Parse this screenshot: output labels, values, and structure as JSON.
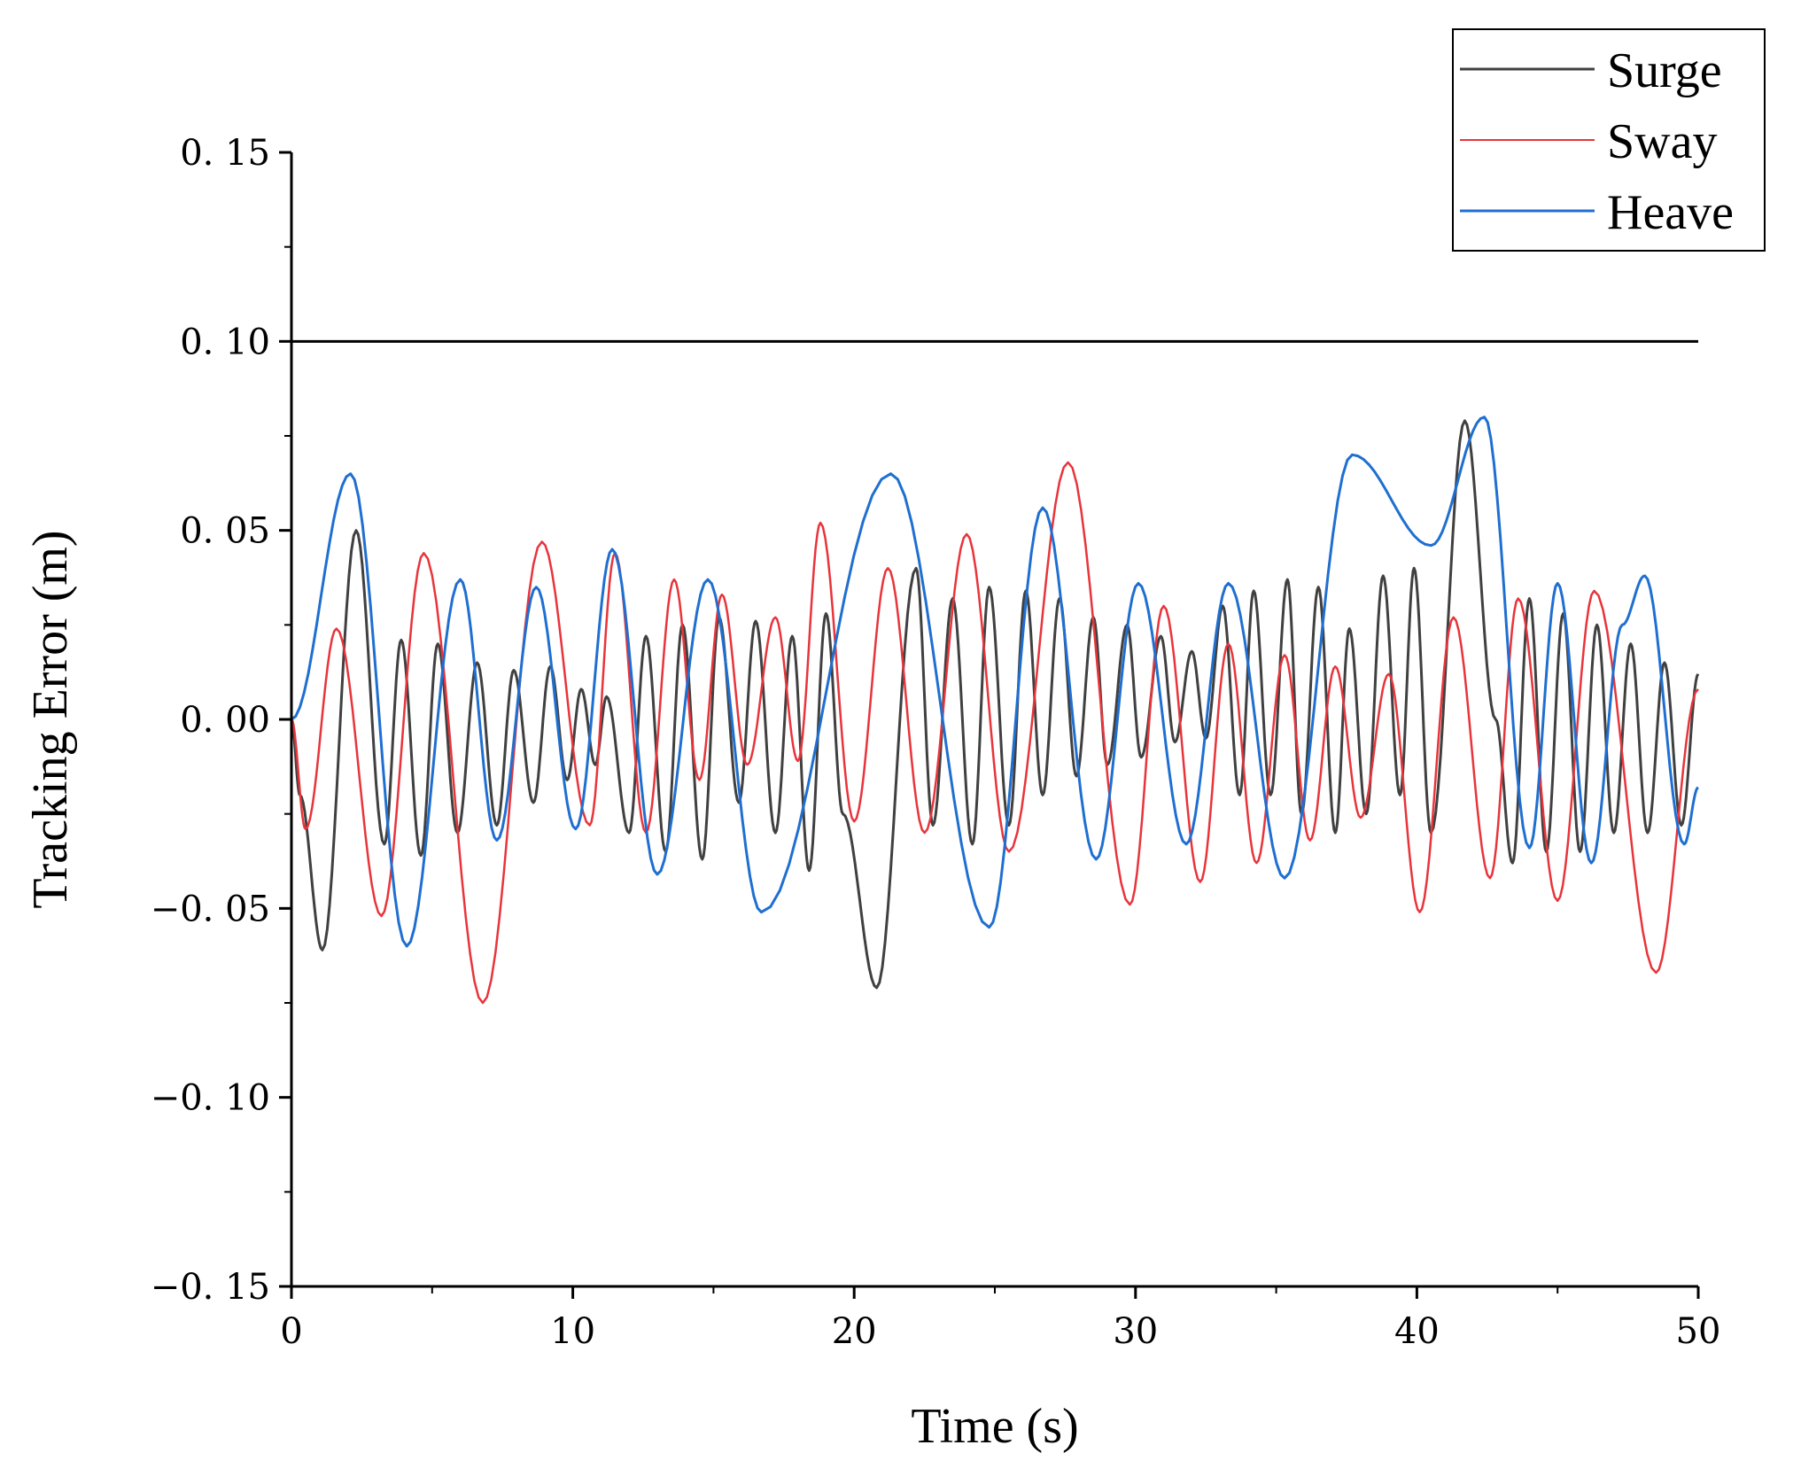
{
  "chart_data": {
    "type": "line",
    "title": "",
    "xlabel": "Time (s)",
    "ylabel": "Tracking Error (m)",
    "xlim": [
      0,
      50
    ],
    "ylim": [
      -0.15,
      0.15
    ],
    "x_ticks": [
      "0",
      "10",
      "20",
      "30",
      "40",
      "50"
    ],
    "y_ticks": [
      "0.15",
      "0.10",
      "0.05",
      "0.00",
      "-0.05",
      "-0.10",
      "-0.15"
    ],
    "y_tick_values": [
      0.15,
      0.1,
      0.05,
      0.0,
      -0.05,
      -0.1,
      -0.15
    ],
    "x_tick_values": [
      0,
      10,
      20,
      30,
      40,
      50
    ],
    "grid": false,
    "legend_position": "top-right",
    "threshold": {
      "y": 0.1,
      "color": "#000000"
    },
    "series": [
      {
        "name": "Surge",
        "color": "#404040",
        "extrema": [
          [
            0,
            0
          ],
          [
            0.3,
            -0.02
          ],
          [
            1.1,
            -0.061
          ],
          [
            2.3,
            0.05
          ],
          [
            3.3,
            -0.033
          ],
          [
            3.9,
            0.021
          ],
          [
            4.6,
            -0.036
          ],
          [
            5.2,
            0.02
          ],
          [
            5.9,
            -0.03
          ],
          [
            6.6,
            0.015
          ],
          [
            7.3,
            -0.028
          ],
          [
            7.9,
            0.013
          ],
          [
            8.6,
            -0.022
          ],
          [
            9.2,
            0.014
          ],
          [
            9.8,
            -0.016
          ],
          [
            10.3,
            0.008
          ],
          [
            10.8,
            -0.012
          ],
          [
            11.2,
            0.006
          ],
          [
            12.0,
            -0.03
          ],
          [
            12.6,
            0.022
          ],
          [
            13.3,
            -0.035
          ],
          [
            13.9,
            0.025
          ],
          [
            14.6,
            -0.037
          ],
          [
            15.2,
            0.027
          ],
          [
            15.9,
            -0.022
          ],
          [
            16.5,
            0.026
          ],
          [
            17.2,
            -0.03
          ],
          [
            17.8,
            0.022
          ],
          [
            18.4,
            -0.04
          ],
          [
            19.0,
            0.028
          ],
          [
            19.6,
            -0.025
          ],
          [
            20.8,
            -0.071
          ],
          [
            22.2,
            0.04
          ],
          [
            22.8,
            -0.028
          ],
          [
            23.5,
            0.032
          ],
          [
            24.2,
            -0.033
          ],
          [
            24.8,
            0.035
          ],
          [
            25.5,
            -0.028
          ],
          [
            26.1,
            0.034
          ],
          [
            26.7,
            -0.02
          ],
          [
            27.3,
            0.032
          ],
          [
            27.9,
            -0.015
          ],
          [
            28.5,
            0.027
          ],
          [
            29.0,
            -0.012
          ],
          [
            29.7,
            0.025
          ],
          [
            30.2,
            -0.01
          ],
          [
            30.9,
            0.022
          ],
          [
            31.4,
            -0.006
          ],
          [
            32.0,
            0.018
          ],
          [
            32.5,
            -0.005
          ],
          [
            33.1,
            0.03
          ],
          [
            33.7,
            -0.02
          ],
          [
            34.2,
            0.034
          ],
          [
            34.8,
            -0.02
          ],
          [
            35.4,
            0.037
          ],
          [
            35.9,
            -0.025
          ],
          [
            36.5,
            0.035
          ],
          [
            37.1,
            -0.03
          ],
          [
            37.6,
            0.024
          ],
          [
            38.2,
            -0.025
          ],
          [
            38.8,
            0.038
          ],
          [
            39.4,
            -0.02
          ],
          [
            39.9,
            0.04
          ],
          [
            40.5,
            -0.03
          ],
          [
            41.7,
            0.079
          ],
          [
            42.8,
            0.0
          ],
          [
            43.4,
            -0.038
          ],
          [
            44.0,
            0.032
          ],
          [
            44.6,
            -0.035
          ],
          [
            45.2,
            0.028
          ],
          [
            45.8,
            -0.035
          ],
          [
            46.4,
            0.025
          ],
          [
            47.0,
            -0.03
          ],
          [
            47.6,
            0.02
          ],
          [
            48.2,
            -0.03
          ],
          [
            48.8,
            0.015
          ],
          [
            49.4,
            -0.028
          ],
          [
            50,
            0.012
          ]
        ]
      },
      {
        "name": "Sway",
        "color": "#e8343b",
        "extrema": [
          [
            0,
            0
          ],
          [
            0.5,
            -0.029
          ],
          [
            1.6,
            0.024
          ],
          [
            3.2,
            -0.052
          ],
          [
            4.7,
            0.044
          ],
          [
            6.8,
            -0.075
          ],
          [
            8.9,
            0.047
          ],
          [
            10.6,
            -0.028
          ],
          [
            11.5,
            0.044
          ],
          [
            12.6,
            -0.03
          ],
          [
            13.6,
            0.037
          ],
          [
            14.5,
            -0.016
          ],
          [
            15.3,
            0.033
          ],
          [
            16.2,
            -0.012
          ],
          [
            17.2,
            0.027
          ],
          [
            18.0,
            -0.011
          ],
          [
            18.8,
            0.052
          ],
          [
            20.0,
            -0.027
          ],
          [
            21.2,
            0.04
          ],
          [
            22.5,
            -0.03
          ],
          [
            24.0,
            0.049
          ],
          [
            25.5,
            -0.035
          ],
          [
            27.6,
            0.068
          ],
          [
            29.8,
            -0.049
          ],
          [
            31.0,
            0.03
          ],
          [
            32.3,
            -0.043
          ],
          [
            33.3,
            0.02
          ],
          [
            34.3,
            -0.038
          ],
          [
            35.3,
            0.017
          ],
          [
            36.2,
            -0.032
          ],
          [
            37.1,
            0.014
          ],
          [
            38.0,
            -0.026
          ],
          [
            39.0,
            0.012
          ],
          [
            40.1,
            -0.051
          ],
          [
            41.3,
            0.027
          ],
          [
            42.6,
            -0.042
          ],
          [
            43.6,
            0.032
          ],
          [
            45.0,
            -0.048
          ],
          [
            46.3,
            0.034
          ],
          [
            48.5,
            -0.067
          ],
          [
            50,
            0.008
          ]
        ]
      },
      {
        "name": "Heave",
        "color": "#1f6fd1",
        "extrema": [
          [
            0,
            0
          ],
          [
            2.1,
            0.065
          ],
          [
            4.1,
            -0.06
          ],
          [
            6.0,
            0.037
          ],
          [
            7.3,
            -0.032
          ],
          [
            8.7,
            0.035
          ],
          [
            10.1,
            -0.029
          ],
          [
            11.4,
            0.045
          ],
          [
            13.0,
            -0.041
          ],
          [
            14.8,
            0.037
          ],
          [
            16.7,
            -0.051
          ],
          [
            21.3,
            0.065
          ],
          [
            24.8,
            -0.055
          ],
          [
            26.7,
            0.056
          ],
          [
            28.6,
            -0.037
          ],
          [
            30.1,
            0.036
          ],
          [
            31.8,
            -0.033
          ],
          [
            33.3,
            0.036
          ],
          [
            35.3,
            -0.042
          ],
          [
            37.7,
            0.07
          ],
          [
            40.5,
            0.046
          ],
          [
            42.4,
            0.08
          ],
          [
            44.0,
            -0.034
          ],
          [
            45.0,
            0.036
          ],
          [
            46.2,
            -0.038
          ],
          [
            47.3,
            0.025
          ],
          [
            48.1,
            0.038
          ],
          [
            49.5,
            -0.033
          ],
          [
            50,
            -0.018
          ]
        ]
      }
    ]
  }
}
